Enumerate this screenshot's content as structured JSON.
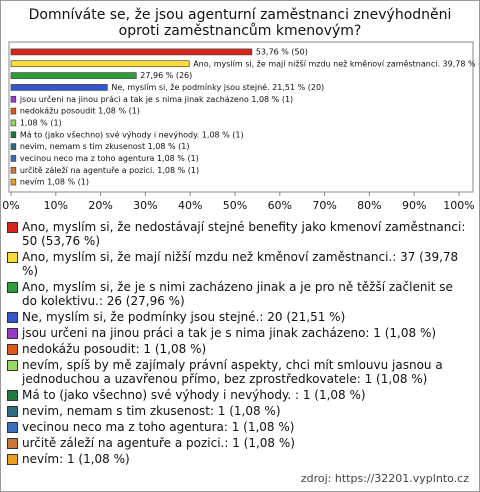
{
  "chart_data": {
    "type": "hbar",
    "title": "Domníváte se, že jsou agenturní zaměstnanci znevýhodněni oproti zaměstnancům kmenovým?",
    "categories": [
      "Ano, myslím si, že nedostávají stejné benefity jako kmenoví zaměstnanci: 50 (53,76 %)",
      "Ano, myslím si, že mají nižší mzdu než kměnoví zaměstnanci.: 37 (39,78 %)",
      "Ano, myslím si, že je s nimi zacházeno jinak a je pro ně těžší začlenit se do kolektivu.: 26 (27,96 %)",
      "Ne, myslím si, že podmínky jsou stejné.: 20 (21,51 %)",
      "jsou určeni na jinou práci a tak je s nima jinak zacházeno: 1 (1,08 %)",
      "nedokážu posoudit: 1 (1,08 %)",
      "nevím, spíš by mě zajímaly právní aspekty, chci mít smlouvu jasnou a jednoduchou a uzavřenou přímo, bez zprostředkovatele: 1 (1,08 %)",
      "Má to (jako všechno) své výhody i nevýhody. : 1 (1,08 %)",
      "nevim, nemam s tim zkusenost: 1 (1,08 %)",
      "vecinou neco ma z toho agentura: 1 (1,08 %)",
      "určitě záleží na agentuře a pozici.: 1 (1,08 %)",
      "nevím: 1 (1,08 %)"
    ],
    "values": [
      53.76,
      39.78,
      27.96,
      21.51,
      1.08,
      1.08,
      1.08,
      1.08,
      1.08,
      1.08,
      1.08,
      1.08
    ],
    "value_labels": [
      "53,76 % (50)",
      "Ano, myslím si, že mají nižší mzdu než kměnoví zaměstnanci. 39,78 % (37)",
      "27,96 % (26)",
      "Ne, myslím si, že podmínky jsou stejné. 21,51 % (20)",
      "jsou určeni na jinou práci a tak je s nima jinak zacházeno 1,08 % (1)",
      "nedokážu posoudit 1,08 % (1)",
      "1,08 % (1)",
      "Má to (jako všechno) své výhody i nevýhody.  1,08 % (1)",
      "nevim, nemam s tim zkusenost 1,08 % (1)",
      "vecinou neco ma z toho agentura 1,08 % (1)",
      "určitě záleží na agentuře a pozici. 1,08 % (1)",
      "nevím 1,08 % (1)"
    ],
    "colors": [
      "#d6261c",
      "#f7dc3a",
      "#2e9e3a",
      "#3456cc",
      "#9a3acb",
      "#dd5a1e",
      "#9ad866",
      "#1f7a3d",
      "#2d6d7e",
      "#3a6fbf",
      "#c9783a",
      "#e8a21f"
    ],
    "xlim": [
      0,
      100
    ],
    "xticks": [
      {
        "value": 0,
        "label": "0%"
      },
      {
        "value": 10,
        "label": "10%"
      },
      {
        "value": 20,
        "label": "20%"
      },
      {
        "value": 30,
        "label": "30%"
      },
      {
        "value": 40,
        "label": "40%"
      },
      {
        "value": 50,
        "label": "50%"
      },
      {
        "value": 60,
        "label": "60%"
      },
      {
        "value": 70,
        "label": "70%"
      },
      {
        "value": 80,
        "label": "80%"
      },
      {
        "value": 90,
        "label": "90%"
      },
      {
        "value": 100,
        "label": "100%"
      }
    ],
    "grid": false,
    "source": "zdroj: https://32201.vyplnto.cz"
  }
}
